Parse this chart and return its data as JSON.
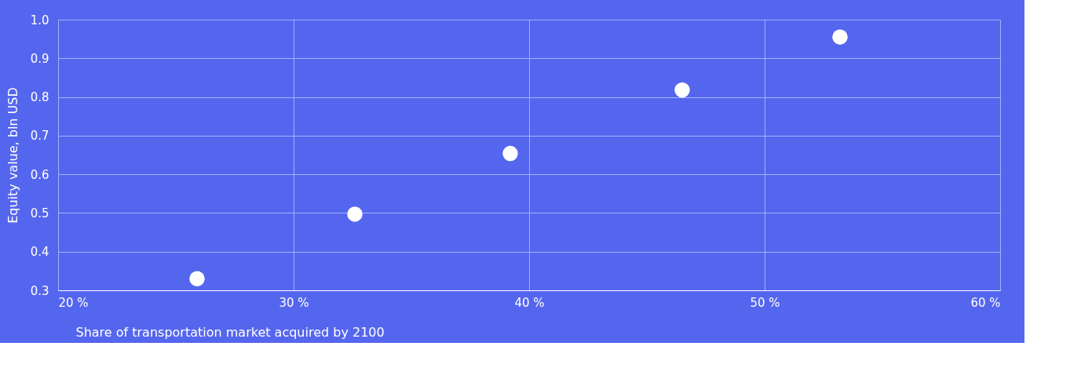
{
  "chart_data": {
    "type": "scatter",
    "xlabel": "Share of transportation market acquired by 2100",
    "ylabel": "Equity value, bln USD",
    "x": [
      25.9,
      32.6,
      39.2,
      46.5,
      53.2
    ],
    "series": [
      {
        "color": "#ffffff",
        "values": [
          0.33,
          0.497,
          0.654,
          0.818,
          0.955
        ]
      }
    ],
    "xlim": [
      20,
      60
    ],
    "xticks": [
      {
        "value": 20,
        "label": "20 %"
      },
      {
        "value": 30,
        "label": "30 %"
      },
      {
        "value": 40,
        "label": "40 %"
      },
      {
        "value": 50,
        "label": "50 %"
      },
      {
        "value": 60,
        "label": "60 %"
      }
    ],
    "ylim": [
      0.3,
      1.0
    ],
    "yticks": [
      {
        "value": 0.3,
        "label": "0.3"
      },
      {
        "value": 0.4,
        "label": "0.4"
      },
      {
        "value": 0.5,
        "label": "0.5"
      },
      {
        "value": 0.6,
        "label": "0.6"
      },
      {
        "value": 0.7,
        "label": "0.7"
      },
      {
        "value": 0.8,
        "label": "0.8"
      },
      {
        "value": 0.9,
        "label": "0.9"
      },
      {
        "value": 1.0,
        "label": "1.0"
      }
    ],
    "grid": true,
    "marker": "circle"
  }
}
